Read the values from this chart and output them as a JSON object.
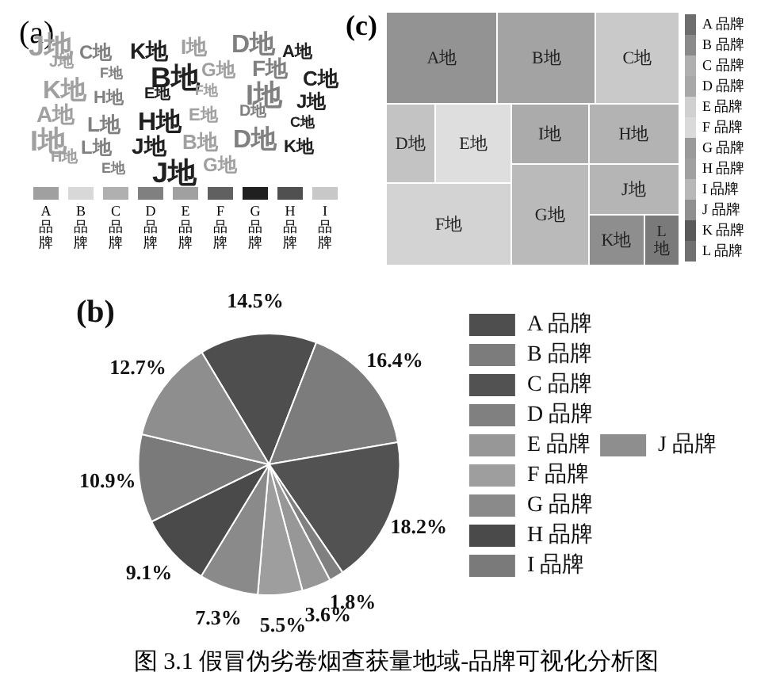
{
  "chart_data": [
    {
      "type": "other",
      "title": "(a)",
      "annotations": [
        "J地",
        "C地",
        "K地",
        "I地",
        "D地",
        "A地",
        "J地",
        "F地",
        "B地",
        "G地",
        "F地",
        "C地",
        "K地",
        "H地",
        "E地",
        "F地",
        "I地",
        "J地",
        "A地",
        "L地",
        "H地",
        "E地",
        "D地",
        "C地",
        "I地",
        "L地",
        "J地",
        "B地",
        "D地",
        "K地",
        "H地",
        "E地",
        "J地",
        "G地"
      ],
      "series": [
        {
          "name": "A 品牌",
          "color": "#a0a0a0"
        },
        {
          "name": "B 品牌",
          "color": "#d8d8d8"
        },
        {
          "name": "C 品牌",
          "color": "#b0b0b0"
        },
        {
          "name": "D 品牌",
          "color": "#808080"
        },
        {
          "name": "E 品牌",
          "color": "#a0a0a0"
        },
        {
          "name": "F 品牌",
          "color": "#606060"
        },
        {
          "name": "G 品牌",
          "color": "#202020"
        },
        {
          "name": "H 品牌",
          "color": "#505050"
        },
        {
          "name": "I 品牌",
          "color": "#c8c8c8"
        }
      ]
    },
    {
      "type": "other",
      "title": "(c)",
      "annotations": [
        "A地",
        "B地",
        "C地",
        "D地",
        "E地",
        "I地",
        "H地",
        "F地",
        "G地",
        "J地",
        "K地",
        "L地"
      ],
      "colors": [
        "#939393",
        "#a3a3a3",
        "#c9c9c9",
        "#c3c3c3",
        "#dedede",
        "#ababab",
        "#b3b3b3",
        "#d3d3d3",
        "#bababa",
        "#b5b5b5",
        "#8e8e8e",
        "#7a7a7a"
      ],
      "series": [
        {
          "name": "A 品牌",
          "color": "#6e6e6e"
        },
        {
          "name": "B 品牌",
          "color": "#8a8a8a"
        },
        {
          "name": "C 品牌",
          "color": "#b0b0b0"
        },
        {
          "name": "D 品牌",
          "color": "#a8a8a8"
        },
        {
          "name": "E 品牌",
          "color": "#d0d0d0"
        },
        {
          "name": "F 品牌",
          "color": "#dadada"
        },
        {
          "name": "G 品牌",
          "color": "#9a9a9a"
        },
        {
          "name": "H 品牌",
          "color": "#a0a0a0"
        },
        {
          "name": "I 品牌",
          "color": "#b8b8b8"
        },
        {
          "name": "J 品牌",
          "color": "#909090"
        },
        {
          "name": "K 品牌",
          "color": "#5a5a5a"
        },
        {
          "name": "L 品牌",
          "color": "#707070"
        }
      ]
    },
    {
      "type": "pie",
      "title": "(b)",
      "legend": "right",
      "categories": [
        "A 品牌",
        "B 品牌",
        "C 品牌",
        "D 品牌",
        "E 品牌",
        "F 品牌",
        "G 品牌",
        "H 品牌",
        "I 品牌",
        "J 品牌"
      ],
      "values": [
        14.5,
        16.4,
        18.2,
        1.8,
        3.6,
        5.5,
        7.3,
        9.1,
        10.9,
        12.7
      ],
      "value_labels": [
        "14.5%",
        "16.4%",
        "18.2%",
        "1.8%",
        "3.6%",
        "5.5%",
        "7.3%",
        "9.1%",
        "10.9%",
        "12.7%"
      ],
      "colors": [
        "#4e4e4e",
        "#7c7c7c",
        "#525252",
        "#808080",
        "#979797",
        "#9e9e9e",
        "#8a8a8a",
        "#4a4a4a",
        "#7a7a7a",
        "#8e8e8e"
      ],
      "annotations": [
        "图 3.1 假冒伪劣卷烟查获量地域-品牌可视化分析图"
      ]
    }
  ]
}
